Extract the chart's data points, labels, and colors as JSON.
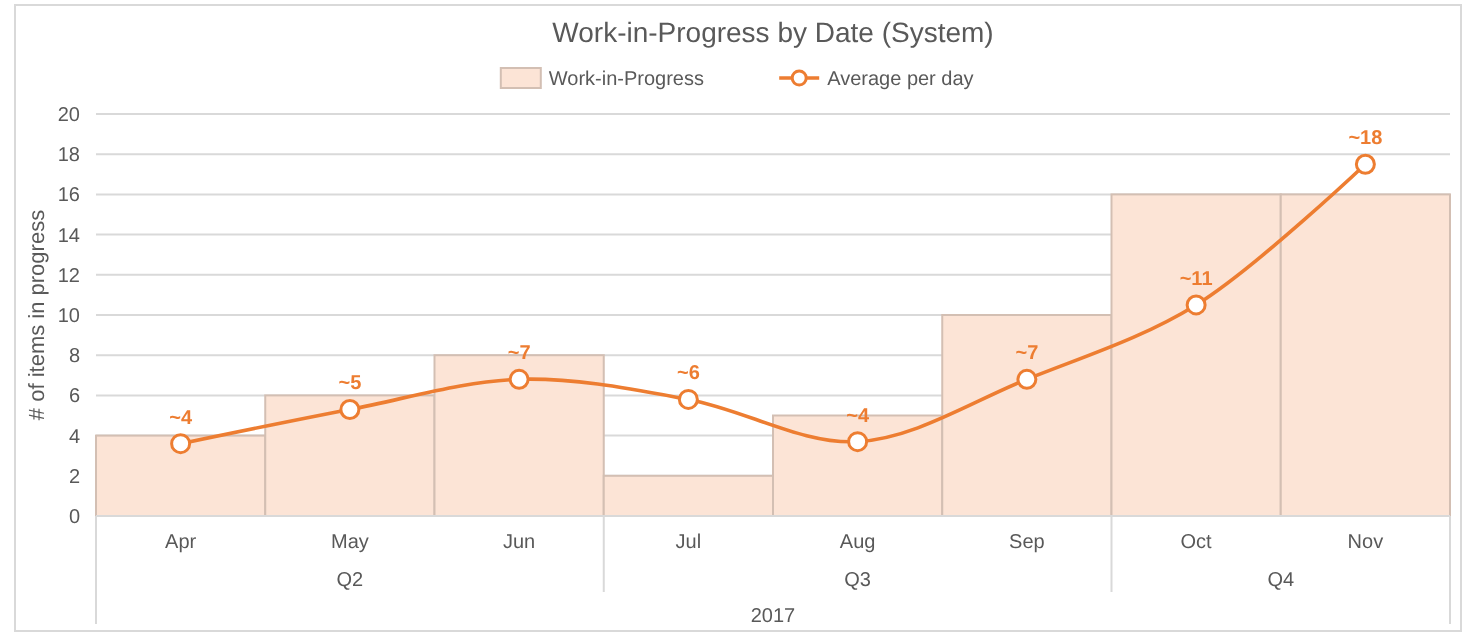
{
  "chart_data": {
    "type": "bar",
    "title": "Work-in-Progress by Date (System)",
    "ylabel": "# of items in progress",
    "categories": [
      "Apr",
      "May",
      "Jun",
      "Jul",
      "Aug",
      "Sep",
      "Oct",
      "Nov"
    ],
    "series": [
      {
        "name": "Work-in-Progress",
        "color": "#fce4d6",
        "values": [
          4,
          6,
          8,
          2,
          5,
          10,
          16,
          16
        ]
      },
      {
        "name": "Average per day",
        "type": "line",
        "color": "#ed7d31",
        "marker": "circle",
        "values": [
          3.6,
          5.3,
          6.8,
          5.8,
          3.7,
          6.8,
          10.5,
          17.5
        ],
        "value_labels": [
          "~4",
          "~5",
          "~7",
          "~6",
          "~4",
          "~7",
          "~11",
          "~18"
        ]
      }
    ],
    "ylim": [
      0,
      20
    ],
    "yticks": [
      0,
      2,
      4,
      6,
      8,
      10,
      12,
      14,
      16,
      18,
      20
    ],
    "grid": "y",
    "legend": "top",
    "annotations": [
      "Q2",
      "Q3",
      "Q4",
      "2017"
    ]
  }
}
